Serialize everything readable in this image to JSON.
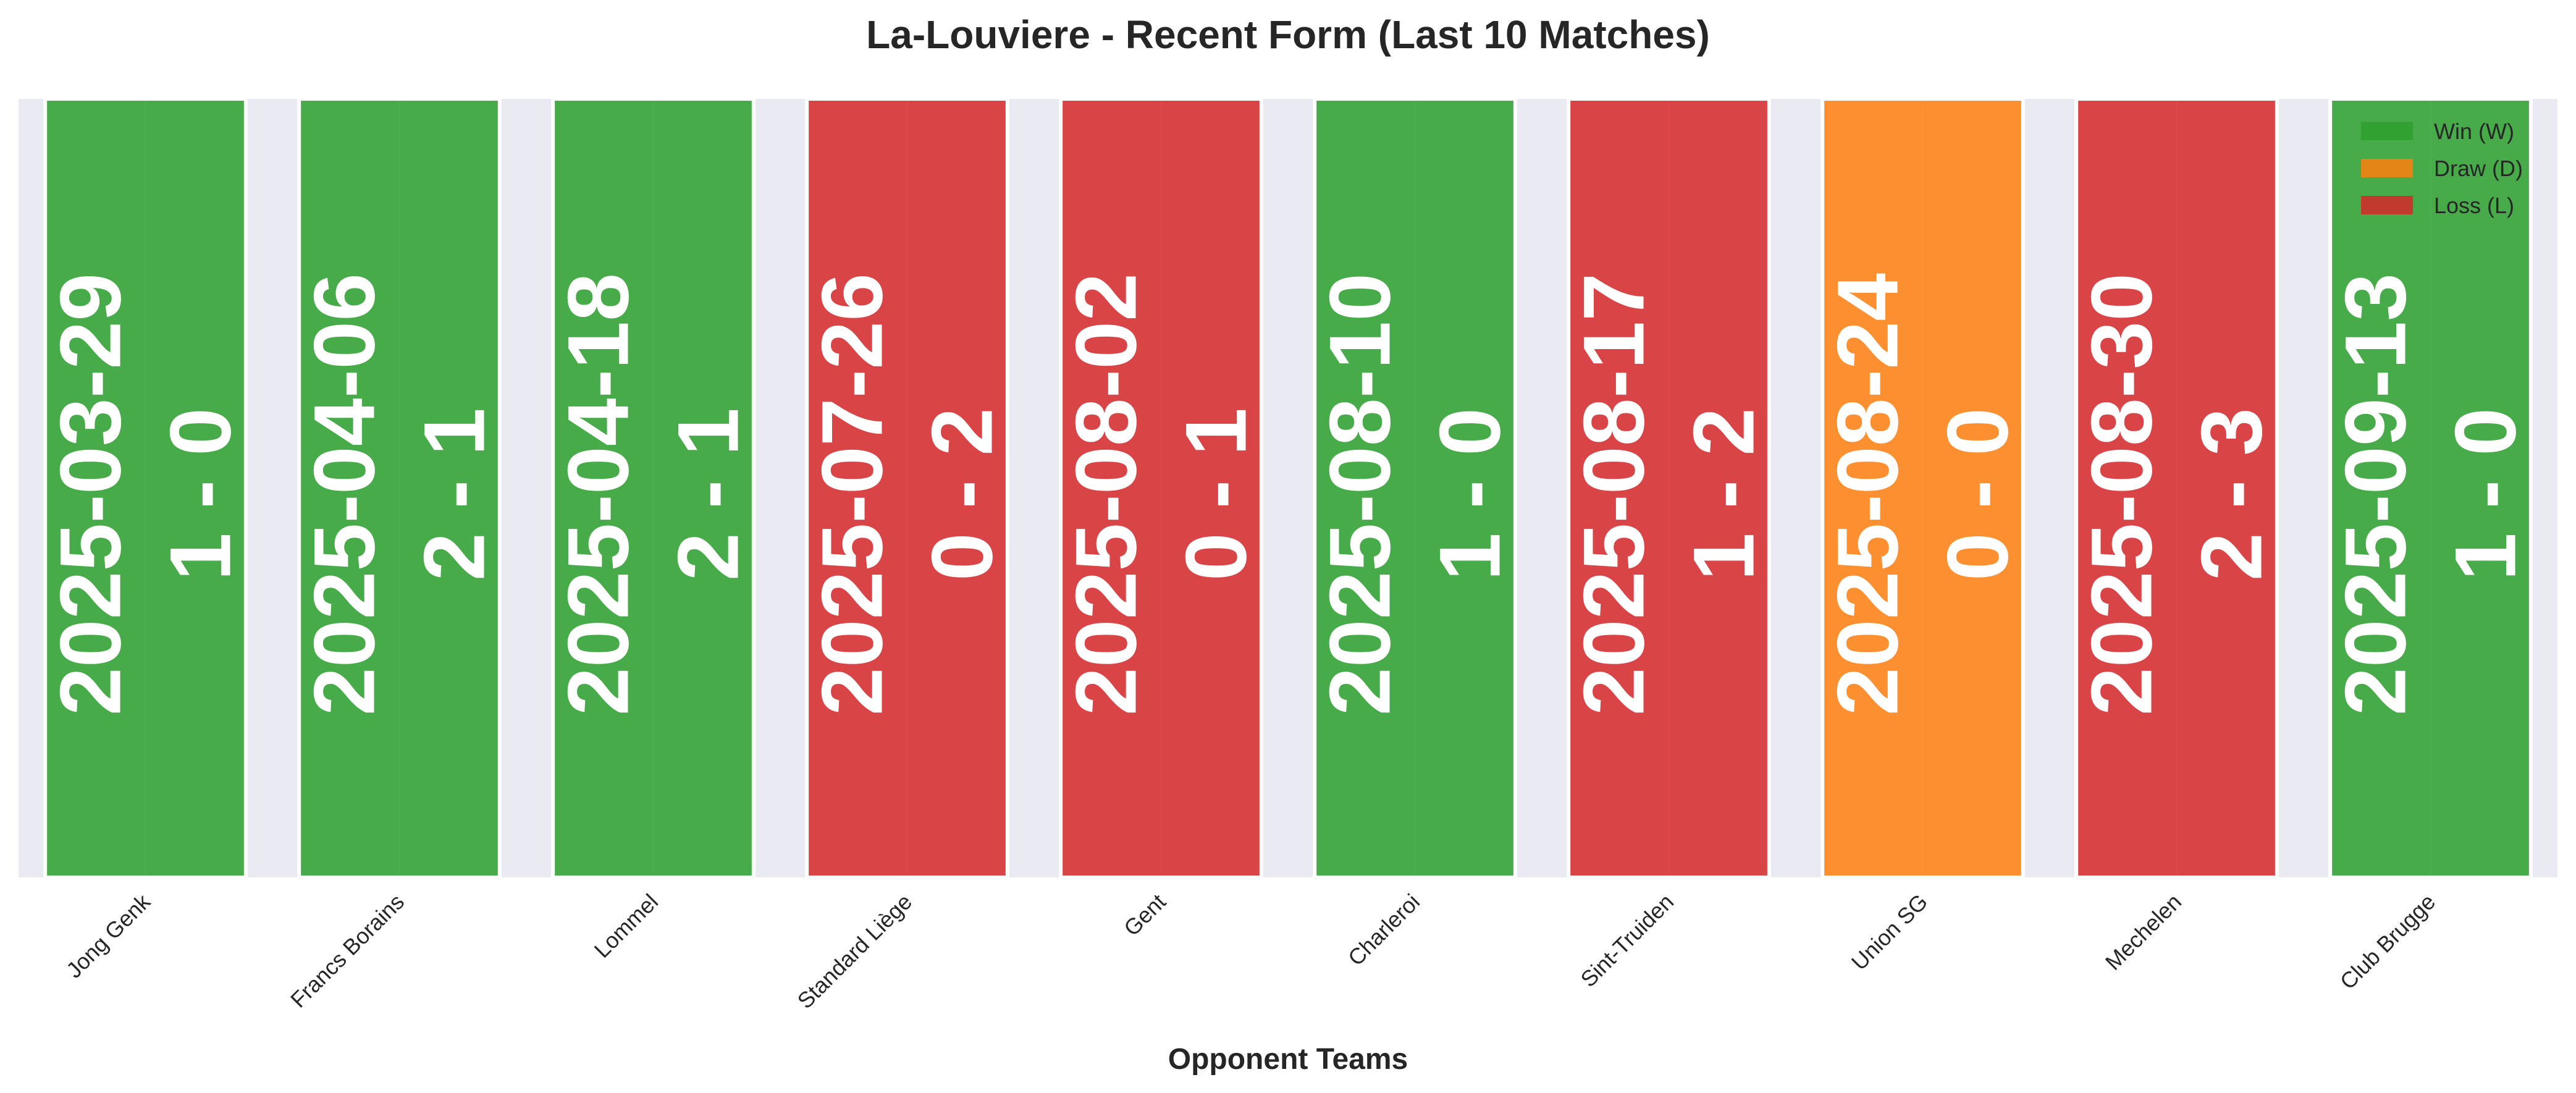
{
  "chart_data": {
    "type": "bar",
    "title": "La-Louviere - Recent Form (Last 10 Matches)",
    "xlabel": "Opponent Teams",
    "ylabel": "",
    "grid": true,
    "legend_position": "top-right",
    "categories": [
      "Jong Genk",
      "Francs Borains",
      "Lommel",
      "Standard Liège",
      "Gent",
      "Charleroi",
      "Sint-Truiden",
      "Union SG",
      "Mechelen",
      "Club Brugge"
    ],
    "values": [
      1,
      1,
      1,
      1,
      1,
      1,
      1,
      1,
      1,
      1
    ],
    "results": [
      "W",
      "W",
      "W",
      "L",
      "L",
      "W",
      "L",
      "D",
      "L",
      "W"
    ],
    "dates": [
      "2025-03-29",
      "2025-04-06",
      "2025-04-18",
      "2025-07-26",
      "2025-08-02",
      "2025-08-10",
      "2025-08-17",
      "2025-08-24",
      "2025-08-30",
      "2025-09-13"
    ],
    "scores": [
      "1 - 0",
      "2 - 1",
      "2 - 1",
      "0 - 2",
      "0 - 1",
      "1 - 0",
      "1 - 2",
      "0 - 0",
      "2 - 3",
      "1 - 0"
    ],
    "legend": [
      {
        "key": "W",
        "label": "Win (W)",
        "color": "#2ca02c"
      },
      {
        "key": "D",
        "label": "Draw (D)",
        "color": "#ff7f0e"
      },
      {
        "key": "L",
        "label": "Loss (L)",
        "color": "#d62728"
      }
    ],
    "colors": {
      "W": "#2ca02c",
      "D": "#ff7f0e",
      "L": "#d62728",
      "plot_background": "#eaeaf2"
    }
  }
}
